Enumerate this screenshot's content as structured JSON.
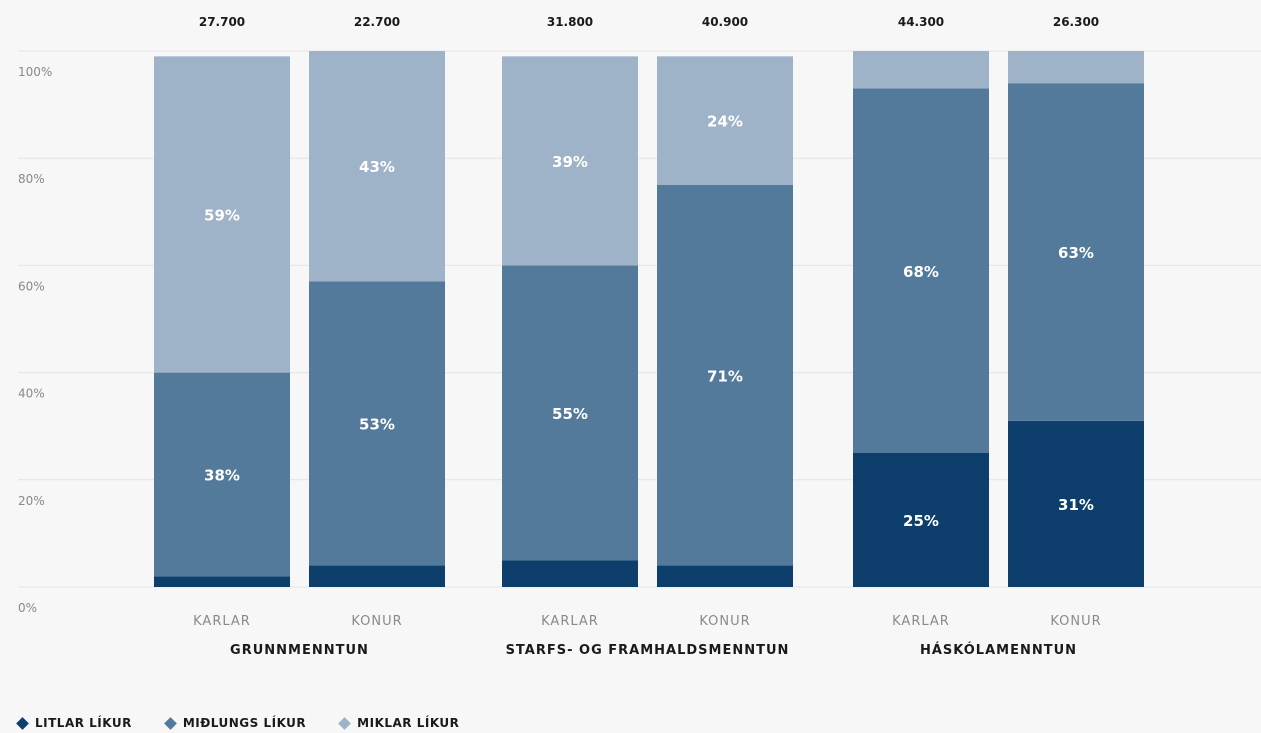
{
  "chart_data": {
    "type": "bar",
    "stacked": true,
    "normalized": true,
    "ylim": [
      0,
      100
    ],
    "yticks": [
      "0%",
      "20%",
      "40%",
      "60%",
      "80%",
      "100%"
    ],
    "grid": true,
    "legend_position": "bottom-left",
    "groups": [
      {
        "label": "GRUNNMENNTUN",
        "bars": [
          {
            "category": "KARLAR",
            "total_label": "27.700",
            "values": [
              2,
              38,
              59
            ],
            "labels": [
              "",
              "38%",
              "59%"
            ]
          },
          {
            "category": "KONUR",
            "total_label": "22.700",
            "values": [
              4,
              53,
              43
            ],
            "labels": [
              "",
              "53%",
              "43%"
            ]
          }
        ]
      },
      {
        "label": "STARFS- OG FRAMHALDSMENNTUN",
        "bars": [
          {
            "category": "KARLAR",
            "total_label": "31.800",
            "values": [
              5,
              55,
              39
            ],
            "labels": [
              "",
              "55%",
              "39%"
            ]
          },
          {
            "category": "KONUR",
            "total_label": "40.900",
            "values": [
              4,
              71,
              24
            ],
            "labels": [
              "",
              "71%",
              "24%"
            ]
          }
        ]
      },
      {
        "label": "HÁSKÓLAMENNTUN",
        "bars": [
          {
            "category": "KARLAR",
            "total_label": "44.300",
            "values": [
              25,
              68,
              7
            ],
            "labels": [
              "25%",
              "68%",
              ""
            ]
          },
          {
            "category": "KONUR",
            "total_label": "26.300",
            "values": [
              31,
              63,
              6
            ],
            "labels": [
              "31%",
              "63%",
              ""
            ]
          }
        ]
      }
    ],
    "series": [
      {
        "name": "LITLAR LÍKUR",
        "color": "#0e3e6b"
      },
      {
        "name": "MIÐLUNGS LÍKUR",
        "color": "#547a9b"
      },
      {
        "name": "MIKLAR LÍKUR",
        "color": "#9fb3c8"
      }
    ]
  }
}
